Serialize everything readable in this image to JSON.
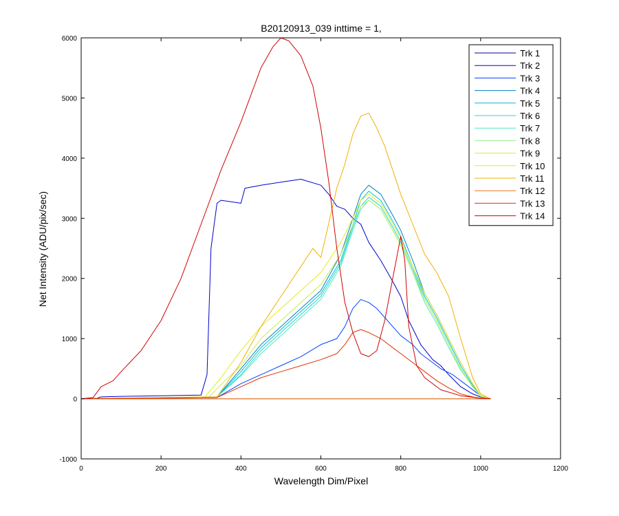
{
  "chart_data": {
    "type": "line",
    "title": "B20120913_039 inttime = 1,",
    "xlabel": "Wavelength Dim/Pixel",
    "ylabel": "Net Intensity (ADU/pix/sec)",
    "xlim": [
      0,
      1200
    ],
    "ylim": [
      -1000,
      6000
    ],
    "xticks": [
      0,
      200,
      400,
      600,
      800,
      1000,
      1200
    ],
    "yticks": [
      -1000,
      0,
      1000,
      2000,
      3000,
      4000,
      5000,
      6000
    ],
    "grid": false,
    "legend_position": "top-right",
    "series": [
      {
        "name": "Trk 1",
        "color": "#00008F",
        "x": [
          0,
          1025
        ],
        "y": [
          0,
          0
        ]
      },
      {
        "name": "Trk 2",
        "color": "#0000C8",
        "x": [
          0,
          40,
          50,
          100,
          200,
          300,
          315,
          325,
          340,
          350,
          400,
          410,
          450,
          500,
          550,
          600,
          620,
          640,
          660,
          680,
          700,
          720,
          750,
          780,
          800,
          820,
          850,
          880,
          900,
          920,
          950,
          980,
          1000,
          1025
        ],
        "y": [
          0,
          10,
          30,
          40,
          50,
          60,
          400,
          2500,
          3250,
          3300,
          3250,
          3500,
          3550,
          3600,
          3650,
          3550,
          3400,
          3200,
          3150,
          3000,
          2900,
          2600,
          2300,
          1950,
          1700,
          1300,
          900,
          650,
          550,
          400,
          200,
          80,
          30,
          0
        ]
      },
      {
        "name": "Trk 3",
        "color": "#0040FF",
        "x": [
          0,
          340,
          400,
          450,
          500,
          550,
          600,
          640,
          660,
          680,
          700,
          720,
          740,
          760,
          780,
          800,
          830,
          850,
          880,
          900,
          930,
          960,
          1000,
          1025
        ],
        "y": [
          0,
          20,
          250,
          400,
          550,
          700,
          900,
          1000,
          1200,
          1500,
          1650,
          1600,
          1500,
          1350,
          1200,
          1050,
          900,
          750,
          600,
          500,
          400,
          250,
          50,
          0
        ]
      },
      {
        "name": "Trk 4",
        "color": "#0080C0",
        "x": [
          0,
          340,
          400,
          450,
          500,
          550,
          600,
          650,
          680,
          700,
          720,
          750,
          780,
          800,
          830,
          860,
          890,
          920,
          950,
          980,
          1000,
          1025
        ],
        "y": [
          0,
          30,
          500,
          900,
          1200,
          1500,
          1800,
          2400,
          3000,
          3400,
          3550,
          3400,
          3050,
          2800,
          2300,
          1750,
          1400,
          1000,
          600,
          250,
          50,
          0
        ]
      },
      {
        "name": "Trk 5",
        "color": "#00BFD0",
        "x": [
          0,
          340,
          400,
          450,
          500,
          550,
          600,
          650,
          680,
          700,
          720,
          750,
          780,
          800,
          830,
          860,
          890,
          920,
          950,
          980,
          1000,
          1025
        ],
        "y": [
          0,
          30,
          450,
          850,
          1150,
          1450,
          1750,
          2300,
          2900,
          3300,
          3450,
          3300,
          2950,
          2700,
          2200,
          1700,
          1350,
          950,
          550,
          220,
          50,
          0
        ]
      },
      {
        "name": "Trk 6",
        "color": "#20D8D0",
        "x": [
          0,
          340,
          400,
          450,
          500,
          550,
          600,
          650,
          680,
          700,
          720,
          750,
          780,
          800,
          830,
          860,
          890,
          920,
          950,
          980,
          1000,
          1025
        ],
        "y": [
          0,
          30,
          400,
          800,
          1100,
          1400,
          1700,
          2250,
          2850,
          3200,
          3350,
          3200,
          2850,
          2600,
          2150,
          1650,
          1300,
          900,
          500,
          200,
          40,
          0
        ]
      },
      {
        "name": "Trk 7",
        "color": "#50E8C0",
        "x": [
          0,
          340,
          400,
          450,
          500,
          550,
          600,
          650,
          680,
          700,
          720,
          750,
          780,
          800,
          830,
          860,
          890,
          920,
          950,
          980,
          1000,
          1025
        ],
        "y": [
          0,
          30,
          380,
          750,
          1050,
          1350,
          1650,
          2200,
          2800,
          3150,
          3300,
          3150,
          2800,
          2550,
          2100,
          1600,
          1250,
          850,
          480,
          200,
          40,
          0
        ]
      },
      {
        "name": "Trk 8",
        "color": "#90F090",
        "x": [
          0,
          1025
        ],
        "y": [
          0,
          0
        ]
      },
      {
        "name": "Trk 9",
        "color": "#C0F050",
        "x": [
          0,
          320,
          360,
          400,
          450,
          500,
          550,
          600,
          650,
          680,
          700,
          720,
          750,
          780,
          800,
          830,
          860,
          890,
          920,
          950,
          980,
          1000,
          1025
        ],
        "y": [
          0,
          30,
          300,
          550,
          1000,
          1300,
          1600,
          1900,
          2400,
          2900,
          3200,
          3300,
          3150,
          2800,
          2550,
          2100,
          1650,
          1300,
          900,
          500,
          200,
          40,
          0
        ]
      },
      {
        "name": "Trk 10",
        "color": "#E8E820",
        "x": [
          0,
          310,
          350,
          400,
          450,
          500,
          550,
          600,
          650,
          680,
          700,
          720,
          750,
          780,
          800,
          830,
          860,
          890,
          920,
          950,
          980,
          1000,
          1025
        ],
        "y": [
          0,
          30,
          350,
          800,
          1200,
          1500,
          1800,
          2100,
          2600,
          3000,
          3300,
          3400,
          3250,
          2900,
          2650,
          2200,
          1750,
          1400,
          1000,
          600,
          250,
          50,
          0
        ]
      },
      {
        "name": "Trk 11",
        "color": "#F0B000",
        "x": [
          0,
          340,
          400,
          450,
          500,
          550,
          580,
          600,
          640,
          660,
          680,
          700,
          720,
          740,
          760,
          780,
          800,
          830,
          860,
          890,
          920,
          950,
          980,
          1000,
          1025
        ],
        "y": [
          0,
          30,
          600,
          1200,
          1700,
          2200,
          2500,
          2350,
          3500,
          3900,
          4400,
          4700,
          4750,
          4500,
          4200,
          3800,
          3400,
          2900,
          2400,
          2100,
          1700,
          1000,
          350,
          80,
          0
        ]
      },
      {
        "name": "Trk 12",
        "color": "#F07020",
        "x": [
          0,
          1025
        ],
        "y": [
          0,
          0
        ]
      },
      {
        "name": "Trk 13",
        "color": "#E03000",
        "x": [
          0,
          340,
          400,
          450,
          500,
          550,
          600,
          640,
          660,
          680,
          700,
          720,
          750,
          780,
          800,
          830,
          860,
          890,
          920,
          950,
          980,
          1000,
          1025
        ],
        "y": [
          0,
          20,
          200,
          350,
          450,
          550,
          650,
          750,
          900,
          1100,
          1150,
          1100,
          1000,
          850,
          750,
          600,
          450,
          300,
          180,
          80,
          30,
          10,
          0
        ]
      },
      {
        "name": "Trk 14",
        "color": "#D00000",
        "x": [
          0,
          30,
          50,
          80,
          100,
          150,
          200,
          250,
          300,
          350,
          400,
          450,
          480,
          500,
          520,
          550,
          580,
          600,
          620,
          640,
          660,
          680,
          700,
          720,
          740,
          760,
          780,
          800,
          810,
          820,
          840,
          860,
          900,
          950,
          1000,
          1025
        ],
        "y": [
          0,
          20,
          200,
          300,
          450,
          800,
          1300,
          2000,
          2900,
          3800,
          4600,
          5500,
          5850,
          6000,
          5950,
          5700,
          5200,
          4500,
          3600,
          2500,
          1600,
          1100,
          750,
          700,
          800,
          1300,
          2000,
          2700,
          2300,
          1200,
          550,
          350,
          150,
          50,
          10,
          0
        ]
      }
    ]
  }
}
